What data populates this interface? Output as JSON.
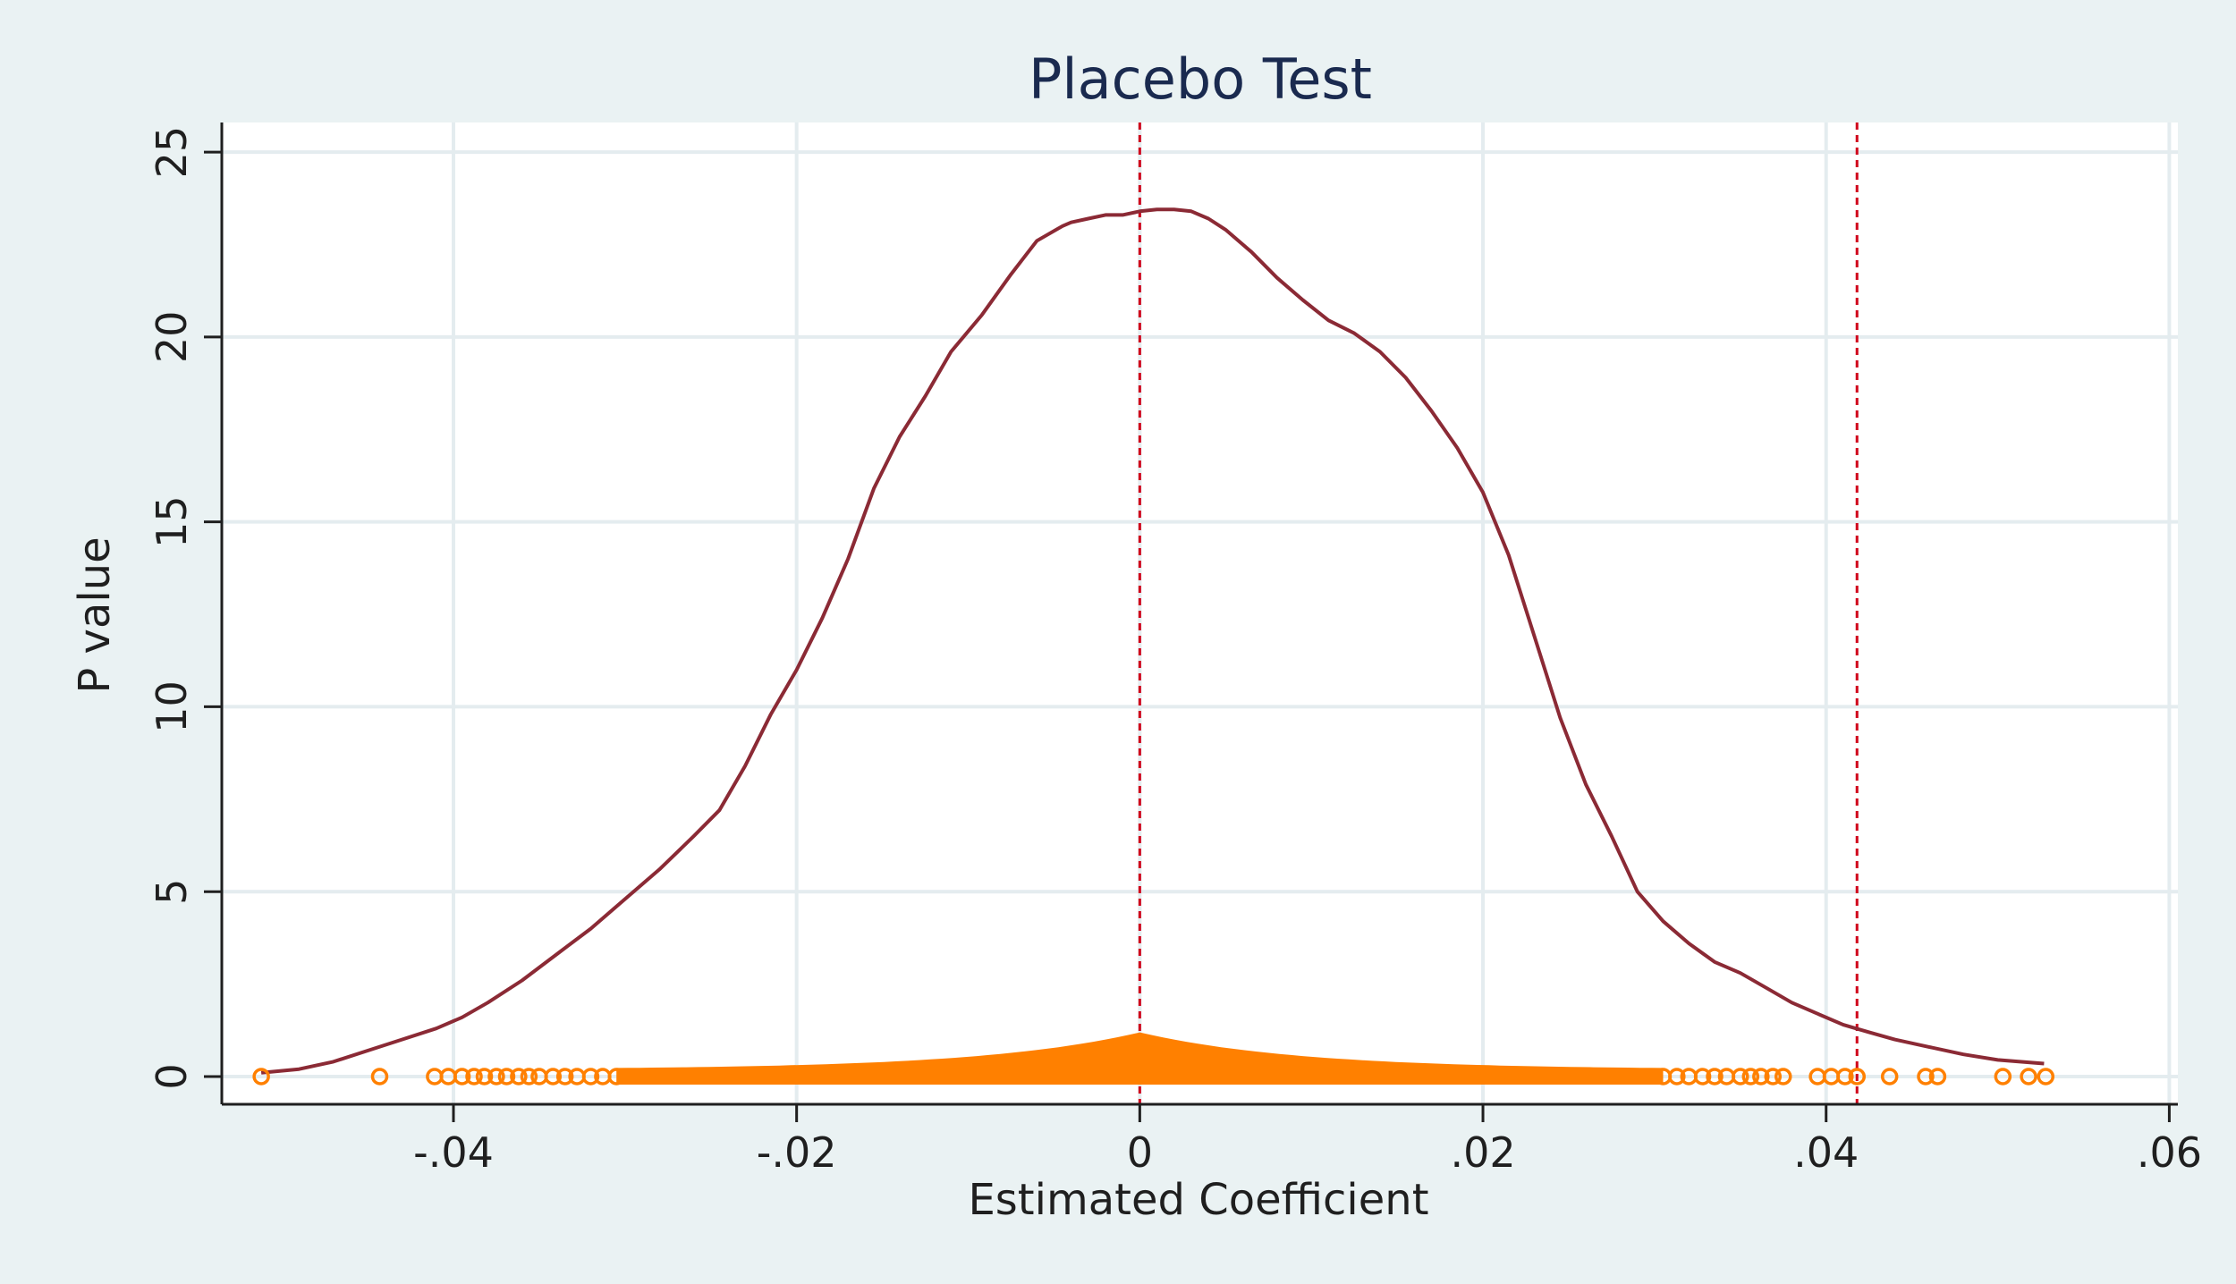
{
  "chart_data": {
    "type": "line",
    "title": "Placebo Test",
    "xlabel": "Estimated Coefficient",
    "ylabel": "P value",
    "xlim": [
      -0.0535,
      0.0605
    ],
    "ylim": [
      -0.75,
      25.8
    ],
    "xticks": [
      {
        "value": -0.04,
        "label": "-.04"
      },
      {
        "value": -0.02,
        "label": "-.02"
      },
      {
        "value": 0,
        "label": "0"
      },
      {
        "value": 0.02,
        "label": ".02"
      },
      {
        "value": 0.04,
        "label": ".04"
      },
      {
        "value": 0.06,
        "label": ".06"
      }
    ],
    "yticks": [
      {
        "value": 0,
        "label": "0"
      },
      {
        "value": 5,
        "label": "5"
      },
      {
        "value": 10,
        "label": "10"
      },
      {
        "value": 15,
        "label": "15"
      },
      {
        "value": 20,
        "label": "20"
      },
      {
        "value": 25,
        "label": "25"
      }
    ],
    "grid": true,
    "reference_lines_x": [
      0,
      0.0418
    ],
    "colors": {
      "background": "#eaf2f3",
      "plot_background": "#ffffff",
      "grid": "#e4ecef",
      "axis": "#1f1f1f",
      "title": "#1a2a4f",
      "density": "#8b2a35",
      "points": "#ff8000",
      "reference": "#d0021b"
    },
    "series": [
      {
        "type": "line",
        "x": [
          -0.0512,
          -0.049,
          -0.047,
          -0.045,
          -0.043,
          -0.041,
          -0.0395,
          -0.038,
          -0.036,
          -0.034,
          -0.032,
          -0.03,
          -0.028,
          -0.026,
          -0.0245,
          -0.023,
          -0.0215,
          -0.02,
          -0.0185,
          -0.017,
          -0.0155,
          -0.014,
          -0.0125,
          -0.011,
          -0.0092,
          -0.0075,
          -0.006,
          -0.0045,
          -0.004,
          -0.003,
          -0.002,
          -0.001,
          0,
          0.001,
          0.002,
          0.003,
          0.004,
          0.005,
          0.0065,
          0.008,
          0.0095,
          0.011,
          0.0125,
          0.014,
          0.0155,
          0.017,
          0.0185,
          0.02,
          0.0215,
          0.023,
          0.0245,
          0.026,
          0.0275,
          0.029,
          0.0305,
          0.032,
          0.0335,
          0.035,
          0.0365,
          0.038,
          0.0395,
          0.041,
          0.0425,
          0.044,
          0.046,
          0.048,
          0.05,
          0.0527
        ],
        "y": [
          0.1,
          0.2,
          0.4,
          0.7,
          1.0,
          1.3,
          1.6,
          2.0,
          2.6,
          3.3,
          4.0,
          4.8,
          5.6,
          6.5,
          7.2,
          8.4,
          9.8,
          11.0,
          12.4,
          14.0,
          15.9,
          17.3,
          18.4,
          19.6,
          20.6,
          21.7,
          22.6,
          23.0,
          23.1,
          23.2,
          23.3,
          23.3,
          23.4,
          23.45,
          23.45,
          23.4,
          23.2,
          22.9,
          22.3,
          21.6,
          21.0,
          20.45,
          20.1,
          19.6,
          18.9,
          18.0,
          17.0,
          15.8,
          14.1,
          11.9,
          9.7,
          7.9,
          6.5,
          5.0,
          4.2,
          3.6,
          3.1,
          2.8,
          2.4,
          2.0,
          1.7,
          1.4,
          1.2,
          1.0,
          0.8,
          0.6,
          0.45,
          0.35
        ]
      },
      {
        "type": "scatter",
        "marker": "hollow-circle",
        "x": [
          -0.0512,
          -0.0443,
          -0.0411,
          -0.0403,
          -0.0395,
          -0.0388,
          -0.0382,
          -0.0375,
          -0.0369,
          -0.0362,
          -0.0356,
          -0.035,
          -0.0342,
          -0.0335,
          -0.0328,
          -0.032,
          -0.0313,
          -0.0305,
          0.0305,
          0.0313,
          0.032,
          0.0328,
          0.0335,
          0.0342,
          0.035,
          0.0356,
          0.0362,
          0.0369,
          0.0375,
          0.0395,
          0.0403,
          0.0411,
          0.0418,
          0.0437,
          0.0458,
          0.0465,
          0.0503,
          0.0518,
          0.0528
        ],
        "y": [
          0.0,
          0.0,
          0.0,
          0.0,
          0.0,
          0.0,
          0.0,
          0.0,
          0.0,
          0.0,
          0.0,
          0.0,
          0.0,
          0.0,
          0.0,
          0.0,
          0.0,
          0.0,
          0.0,
          0.0,
          0.0,
          0.0,
          0.0,
          0.0,
          0.0,
          0.0,
          0.0,
          0.0,
          0.0,
          0.0,
          0.0,
          0.0,
          0.0,
          0.0,
          0.0,
          0.0,
          0.0,
          0.0,
          0.0
        ]
      }
    ]
  }
}
